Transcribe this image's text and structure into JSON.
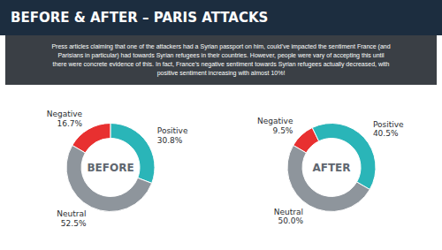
{
  "title": "BEFORE & AFTER – PARIS ATTACKS",
  "subtitle": "Press articles claiming that one of the attackers had a Syrian passport on him, could’ve impacted the sentiment France (and\nParisians in particular) had towards Syrian refugees in their countries.  However, people were vary of accepting this until\nthere were concrete evidence of this.  In fact, France’s negative sentiment towards Syrian refugees actually decreased, with\npositive sentiment increasing with almost 10%!",
  "chart_data": [
    {
      "type": "pie",
      "title": "BEFORE",
      "categories": [
        "Negative",
        "Positive",
        "Neutral"
      ],
      "values": [
        16.7,
        30.8,
        52.5
      ],
      "value_labels": [
        "16.7%",
        "30.8%",
        "52.5%"
      ],
      "colors": [
        "#e83030",
        "#2ab5b8",
        "#8e959c"
      ],
      "data_labels": true
    },
    {
      "type": "pie",
      "title": "AFTER",
      "categories": [
        "Negative",
        "Positive",
        "Neutral"
      ],
      "values": [
        9.5,
        40.5,
        50.0
      ],
      "value_labels": [
        "9.5%",
        "40.5%",
        "50.0%"
      ],
      "colors": [
        "#e83030",
        "#2ab5b8",
        "#8e959c"
      ],
      "data_labels": true
    }
  ]
}
